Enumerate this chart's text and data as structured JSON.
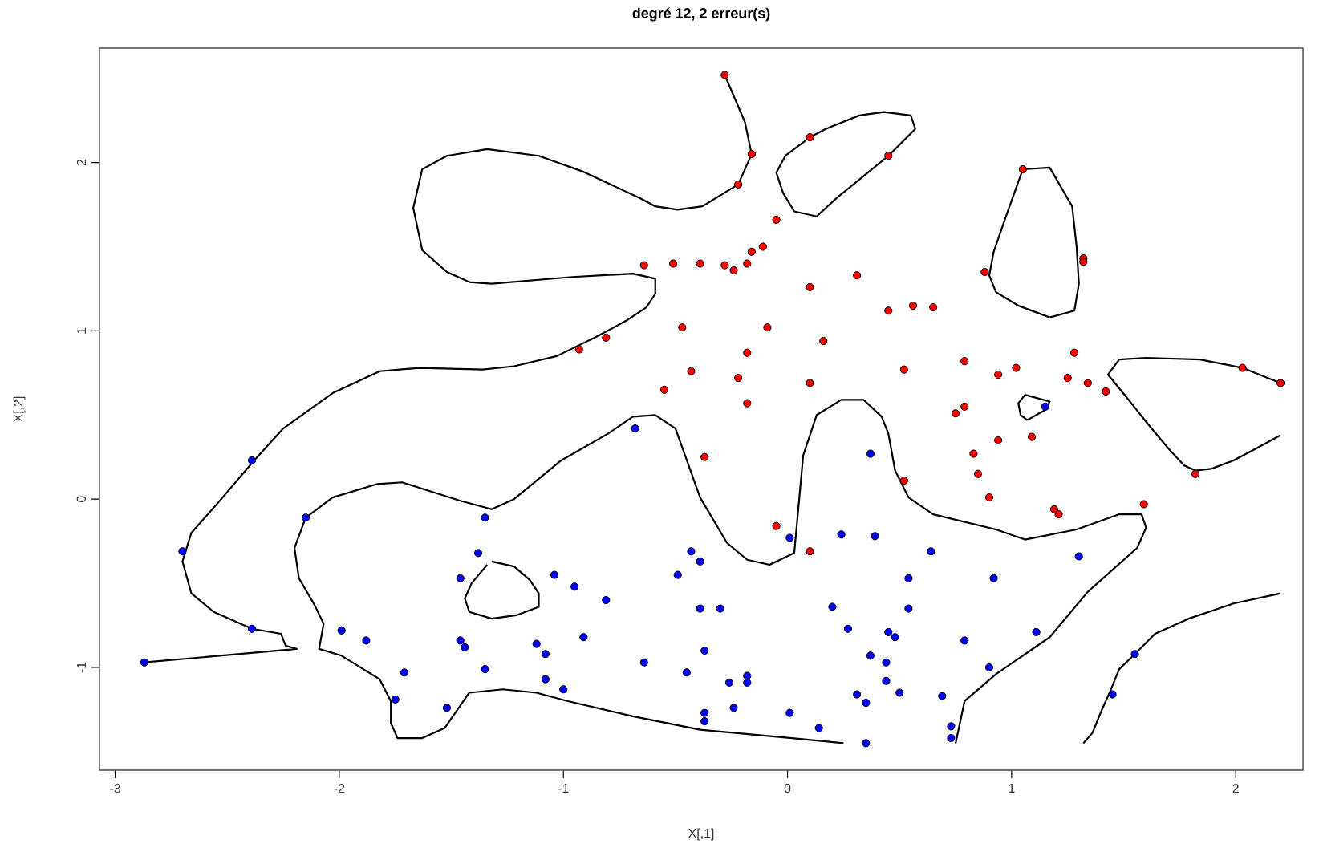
{
  "chart_data": {
    "type": "scatter",
    "title": "**degré 12, 2 erreur(s)**",
    "xlabel": "X[,1]",
    "ylabel": "X[,2]",
    "xlim": [
      -3.07,
      2.3
    ],
    "ylim": [
      -1.61,
      2.68
    ],
    "xticks": [
      -3,
      -2,
      -1,
      0,
      1,
      2
    ],
    "yticks": [
      -1,
      0,
      1,
      2
    ],
    "grid": false,
    "series": [
      {
        "marker": "circle",
        "color": "#ff0000",
        "x": [
          -0.28,
          -0.22,
          -0.64,
          -0.51,
          -0.39,
          -0.28,
          -0.24,
          -0.47,
          -0.81,
          -0.93,
          -0.43,
          -0.22,
          -0.55,
          -0.37,
          -0.16,
          0.1,
          0.45,
          -0.05,
          -0.18,
          -0.16,
          -0.11,
          0.31,
          0.1,
          0.45,
          0.56,
          0.65,
          1.05,
          1.32,
          1.32,
          0.88,
          -0.09,
          0.16,
          -0.18,
          0.1,
          -0.18,
          0.52,
          0.79,
          0.94,
          1.02,
          1.28,
          1.25,
          1.34,
          1.42,
          2.03,
          2.2,
          0.79,
          0.75,
          0.94,
          1.09,
          0.83,
          0.85,
          0.9,
          1.19,
          1.21,
          1.59,
          1.82,
          0.52,
          -0.05,
          0.1
        ],
        "values": [
          2.52,
          1.87,
          1.39,
          1.4,
          1.4,
          1.39,
          1.36,
          1.02,
          0.96,
          0.89,
          0.76,
          0.72,
          0.65,
          0.25,
          2.05,
          2.15,
          2.04,
          1.66,
          1.4,
          1.47,
          1.5,
          1.33,
          1.26,
          1.12,
          1.15,
          1.14,
          1.96,
          1.43,
          1.41,
          1.35,
          1.02,
          0.94,
          0.87,
          0.69,
          0.57,
          0.77,
          0.82,
          0.74,
          0.78,
          0.87,
          0.72,
          0.69,
          0.64,
          0.78,
          0.69,
          0.55,
          0.51,
          0.35,
          0.37,
          0.27,
          0.15,
          0.01,
          -0.06,
          -0.09,
          -0.03,
          0.15,
          0.11,
          -0.16,
          -0.31
        ]
      },
      {
        "marker": "circle",
        "color": "#0000ff",
        "x": [
          1.15,
          0.37,
          -0.68,
          -2.39,
          -2.15,
          -1.35,
          -2.7,
          -1.38,
          -1.46,
          -1.04,
          -0.95,
          -0.81,
          -0.43,
          -0.39,
          -0.49,
          -0.39,
          -0.3,
          -2.39,
          -2.87,
          -1.99,
          -1.88,
          -1.46,
          -1.44,
          -1.12,
          -1.08,
          -0.91,
          -0.37,
          -1.71,
          -1.35,
          -1.08,
          -1.0,
          -0.64,
          -0.45,
          -0.26,
          -1.75,
          -1.52,
          -0.37,
          -0.37,
          -0.24,
          0.01,
          0.24,
          0.39,
          0.64,
          1.3,
          0.54,
          0.92,
          0.2,
          0.54,
          0.27,
          0.45,
          0.48,
          0.79,
          1.11,
          0.37,
          0.44,
          0.9,
          1.55,
          -0.18,
          -0.18,
          0.44,
          0.31,
          0.35,
          0.5,
          0.69,
          1.45,
          0.01,
          0.14,
          0.73,
          0.73,
          0.35
        ],
        "values": [
          0.55,
          0.27,
          0.42,
          0.23,
          -0.11,
          -0.11,
          -0.31,
          -0.32,
          -0.47,
          -0.45,
          -0.52,
          -0.6,
          -0.31,
          -0.37,
          -0.45,
          -0.65,
          -0.65,
          -0.77,
          -0.97,
          -0.78,
          -0.84,
          -0.84,
          -0.88,
          -0.86,
          -0.92,
          -0.82,
          -0.9,
          -1.03,
          -1.01,
          -1.07,
          -1.13,
          -0.97,
          -1.03,
          -1.09,
          -1.19,
          -1.24,
          -1.27,
          -1.32,
          -1.24,
          -0.23,
          -0.21,
          -0.22,
          -0.31,
          -0.34,
          -0.47,
          -0.47,
          -0.64,
          -0.65,
          -0.77,
          -0.79,
          -0.82,
          -0.84,
          -0.79,
          -0.93,
          -0.97,
          -1.0,
          -0.92,
          -1.05,
          -1.09,
          -1.08,
          -1.16,
          -1.21,
          -1.15,
          -1.17,
          -1.16,
          -1.27,
          -1.36,
          -1.35,
          -1.42,
          -1.45
        ]
      },
      {
        "type": "line",
        "marker": "none",
        "color": "#000000",
        "x": [
          -0.28,
          -0.19,
          -0.16,
          -0.22,
          -0.38,
          -0.49,
          -0.59,
          -0.66,
          -0.92,
          -1.11,
          -1.34,
          -1.52,
          -1.63,
          -1.67,
          -1.63,
          -1.52,
          -1.42,
          -1.32,
          -0.96,
          -0.69,
          -0.59,
          -0.59,
          -0.63,
          -0.72,
          -0.86,
          -1.03,
          -1.22,
          -1.36,
          -1.64,
          -1.82,
          -2.03,
          -2.25,
          -2.38,
          -2.54,
          -2.66,
          -2.7,
          -2.66,
          -2.56,
          -2.39,
          -2.26,
          -2.24,
          -2.19,
          -2.87
        ],
        "values": [
          2.52,
          2.24,
          2.05,
          1.87,
          1.74,
          1.72,
          1.74,
          1.79,
          1.95,
          2.04,
          2.08,
          2.04,
          1.96,
          1.73,
          1.48,
          1.35,
          1.29,
          1.28,
          1.32,
          1.34,
          1.31,
          1.22,
          1.14,
          1.06,
          0.96,
          0.85,
          0.79,
          0.77,
          0.78,
          0.76,
          0.63,
          0.42,
          0.23,
          -0.02,
          -0.2,
          -0.37,
          -0.56,
          -0.67,
          -0.77,
          -0.8,
          -0.87,
          -0.89,
          -0.97
        ]
      },
      {
        "type": "line",
        "marker": "none",
        "color": "#000000",
        "x": [
          0.25,
          0.02,
          -0.39,
          -0.69,
          -0.98,
          -1.12,
          -1.27,
          -1.42,
          -1.53,
          -1.63,
          -1.74,
          -1.77,
          -1.77,
          -1.82,
          -1.99,
          -2.09,
          -2.07,
          -2.11,
          -2.18,
          -2.2,
          -2.15,
          -2.03,
          -1.83,
          -1.72,
          -1.46,
          -1.32,
          -1.22,
          -1.01,
          -0.8,
          -0.69,
          -0.59,
          -0.5,
          -0.39,
          -0.27,
          -0.18,
          -0.08,
          0.03,
          0.07,
          0.13,
          0.24,
          0.34,
          0.42,
          0.45,
          0.48,
          0.54,
          0.65,
          0.93,
          1.06,
          1.29,
          1.48,
          1.58,
          1.6,
          1.56,
          1.34,
          1.17,
          0.93,
          0.79,
          0.75
        ],
        "values": [
          -1.45,
          -1.42,
          -1.37,
          -1.29,
          -1.2,
          -1.15,
          -1.13,
          -1.15,
          -1.36,
          -1.42,
          -1.42,
          -1.33,
          -1.2,
          -1.07,
          -0.93,
          -0.89,
          -0.74,
          -0.63,
          -0.47,
          -0.29,
          -0.11,
          0.01,
          0.09,
          0.1,
          -0.01,
          -0.06,
          0.0,
          0.23,
          0.39,
          0.49,
          0.5,
          0.42,
          0.01,
          -0.26,
          -0.36,
          -0.39,
          -0.32,
          0.26,
          0.5,
          0.59,
          0.59,
          0.49,
          0.39,
          0.17,
          0.01,
          -0.09,
          -0.18,
          -0.24,
          -0.18,
          -0.09,
          -0.09,
          -0.17,
          -0.29,
          -0.55,
          -0.82,
          -1.04,
          -1.2,
          -1.45
        ]
      },
      {
        "type": "line",
        "marker": "none",
        "color": "#000000",
        "x": [
          -1.32,
          -1.22,
          -1.15,
          -1.11,
          -1.11,
          -1.21,
          -1.32,
          -1.42,
          -1.44,
          -1.41,
          -1.34
        ],
        "values": [
          -0.37,
          -0.4,
          -0.48,
          -0.56,
          -0.64,
          -0.69,
          -0.71,
          -0.67,
          -0.59,
          -0.5,
          -0.39
        ]
      },
      {
        "type": "line",
        "marker": "none",
        "color": "#000000",
        "x": [
          0.1,
          0.17,
          0.32,
          0.43,
          0.55,
          0.57,
          0.45,
          0.34,
          0.22,
          0.13,
          0.03,
          -0.02,
          -0.05,
          -0.01,
          0.08
        ],
        "values": [
          2.15,
          2.2,
          2.28,
          2.3,
          2.28,
          2.2,
          2.04,
          1.92,
          1.79,
          1.68,
          1.71,
          1.82,
          1.94,
          2.04,
          2.13
        ]
      },
      {
        "type": "line",
        "marker": "none",
        "color": "#000000",
        "x": [
          1.05,
          1.17,
          1.27,
          1.29,
          1.3,
          1.28,
          1.17
        ],
        "values": [
          1.96,
          1.97,
          1.74,
          1.5,
          1.28,
          1.12,
          1.08
        ]
      },
      {
        "type": "line",
        "marker": "none",
        "color": "#000000",
        "x": [
          1.17,
          1.03,
          0.93,
          0.9,
          0.92,
          0.98,
          1.05
        ],
        "values": [
          1.08,
          1.15,
          1.23,
          1.33,
          1.47,
          1.7,
          1.96
        ]
      },
      {
        "type": "line",
        "marker": "none",
        "color": "#000000",
        "x": [
          1.06,
          1.17,
          1.15,
          1.07
        ],
        "values": [
          0.62,
          0.58,
          0.53,
          0.47
        ]
      },
      {
        "type": "line",
        "marker": "none",
        "color": "#000000",
        "x": [
          1.07,
          1.04,
          1.03,
          1.06
        ],
        "values": [
          0.47,
          0.5,
          0.57,
          0.62
        ]
      },
      {
        "type": "line",
        "marker": "none",
        "color": "#000000",
        "x": [
          2.2,
          2.03,
          1.84,
          1.6,
          1.48,
          1.43,
          1.51,
          1.6,
          1.7,
          1.77,
          1.82,
          1.89,
          1.99,
          2.09,
          2.2
        ],
        "values": [
          0.69,
          0.78,
          0.83,
          0.84,
          0.83,
          0.74,
          0.61,
          0.46,
          0.3,
          0.2,
          0.17,
          0.18,
          0.23,
          0.3,
          0.38
        ]
      },
      {
        "type": "line",
        "marker": "none",
        "color": "#000000",
        "x": [
          1.32,
          1.36,
          1.4,
          1.44,
          1.48,
          1.55,
          1.64,
          1.79,
          1.99,
          2.2
        ],
        "values": [
          -1.45,
          -1.39,
          -1.26,
          -1.14,
          -1.01,
          -0.92,
          -0.8,
          -0.71,
          -0.62,
          -0.56
        ]
      }
    ]
  }
}
